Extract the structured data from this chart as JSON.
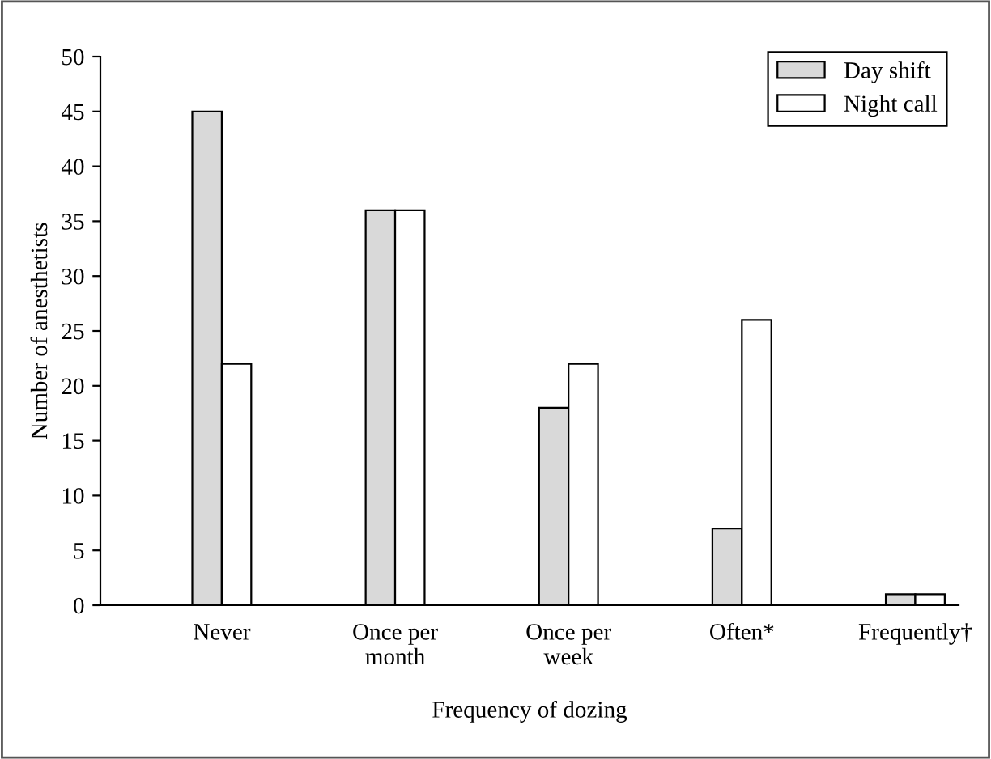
{
  "chart_data": {
    "type": "bar",
    "xlabel": "Frequency of dozing",
    "ylabel": "Number of anesthetists",
    "categories": [
      "Never",
      "Once per\nmonth",
      "Once per\nweek",
      "Often*",
      "Frequently†"
    ],
    "series": [
      {
        "name": "Day shift",
        "color": "#d9d9d9",
        "values": [
          45,
          36,
          18,
          7,
          1
        ]
      },
      {
        "name": "Night call",
        "color": "#ffffff",
        "values": [
          22,
          36,
          22,
          26,
          1
        ]
      }
    ],
    "ylim": [
      0,
      50
    ],
    "yticks": [
      0,
      5,
      10,
      15,
      20,
      25,
      30,
      35,
      40,
      45,
      50
    ],
    "grid": false,
    "legend": "top right"
  }
}
